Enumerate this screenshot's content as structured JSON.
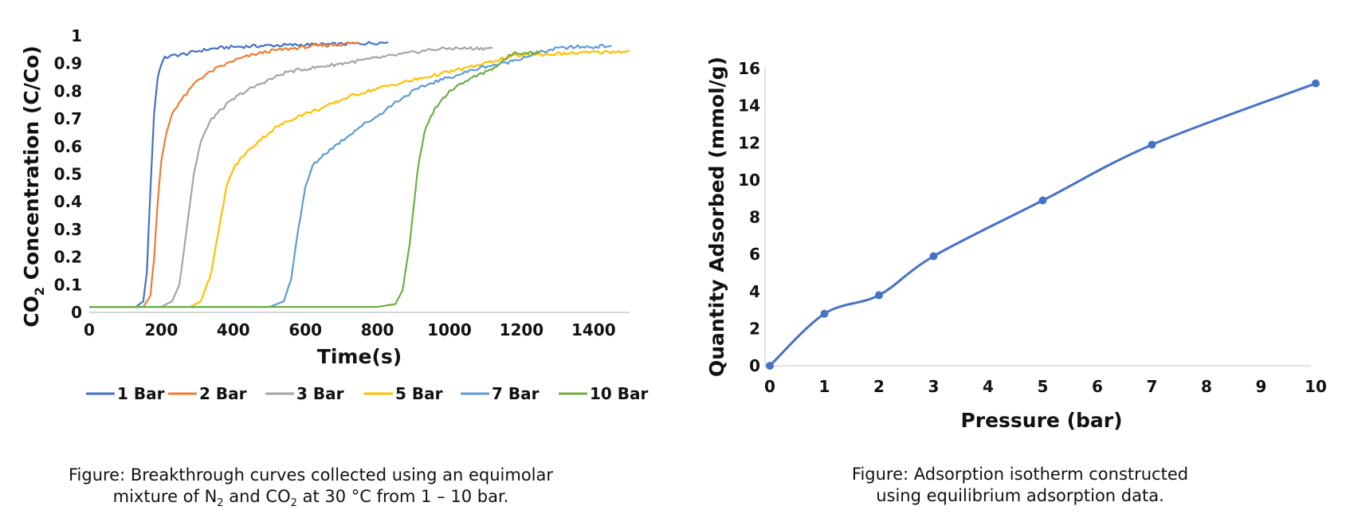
{
  "chart_data": [
    {
      "type": "line",
      "title": "",
      "xlabel": "Time(s)",
      "ylabel_main": "CO",
      "ylabel_sub": "2",
      "ylabel_rest": " Concentration (C/Co)",
      "xlim": [
        0,
        1500
      ],
      "ylim": [
        0,
        1
      ],
      "xticks": [
        0,
        200,
        400,
        600,
        800,
        1000,
        1200,
        1400
      ],
      "yticks": [
        "0",
        "0.1",
        "0.2",
        "0.3",
        "0.4",
        "0.5",
        "0.6",
        "0.7",
        "0.8",
        "0.9",
        "1"
      ],
      "legend_position": "bottom",
      "series": [
        {
          "name": "1 Bar",
          "color": "#4472c4",
          "x": [
            0,
            130,
            150,
            160,
            170,
            180,
            190,
            200,
            210,
            220,
            240,
            270,
            300,
            350,
            400,
            500,
            600,
            700,
            800,
            830
          ],
          "y": [
            0.02,
            0.02,
            0.04,
            0.15,
            0.45,
            0.72,
            0.85,
            0.9,
            0.92,
            0.925,
            0.93,
            0.935,
            0.945,
            0.955,
            0.96,
            0.965,
            0.968,
            0.97,
            0.975,
            0.977
          ]
        },
        {
          "name": "2 Bar",
          "color": "#ed7d31",
          "x": [
            0,
            150,
            170,
            180,
            190,
            200,
            215,
            230,
            250,
            270,
            300,
            350,
            400,
            450,
            500,
            600,
            700,
            750
          ],
          "y": [
            0.02,
            0.02,
            0.06,
            0.2,
            0.4,
            0.55,
            0.65,
            0.72,
            0.76,
            0.79,
            0.84,
            0.88,
            0.91,
            0.93,
            0.945,
            0.96,
            0.97,
            0.975
          ]
        },
        {
          "name": "3 Bar",
          "color": "#a5a5a5",
          "x": [
            0,
            200,
            230,
            250,
            270,
            290,
            310,
            340,
            380,
            420,
            480,
            550,
            650,
            750,
            850,
            950,
            1000,
            1100,
            1120
          ],
          "y": [
            0.02,
            0.02,
            0.04,
            0.1,
            0.3,
            0.5,
            0.62,
            0.7,
            0.75,
            0.79,
            0.83,
            0.87,
            0.89,
            0.91,
            0.93,
            0.95,
            0.955,
            0.955,
            0.955
          ]
        },
        {
          "name": "5 Bar",
          "color": "#ffc000",
          "x": [
            0,
            280,
            310,
            340,
            360,
            380,
            400,
            430,
            470,
            520,
            580,
            650,
            720,
            800,
            900,
            1000,
            1100,
            1150,
            1200,
            1300,
            1400,
            1500
          ],
          "y": [
            0.02,
            0.02,
            0.04,
            0.15,
            0.3,
            0.45,
            0.52,
            0.57,
            0.62,
            0.67,
            0.71,
            0.74,
            0.78,
            0.81,
            0.84,
            0.87,
            0.9,
            0.92,
            0.93,
            0.935,
            0.94,
            0.945
          ]
        },
        {
          "name": "7 Bar",
          "color": "#5b9bd5",
          "x": [
            0,
            500,
            540,
            560,
            580,
            600,
            620,
            650,
            700,
            750,
            800,
            850,
            900,
            950,
            1000,
            1050,
            1100,
            1150,
            1200,
            1250,
            1300,
            1350,
            1400,
            1450
          ],
          "y": [
            0.02,
            0.02,
            0.04,
            0.12,
            0.3,
            0.45,
            0.53,
            0.57,
            0.62,
            0.67,
            0.71,
            0.76,
            0.8,
            0.83,
            0.85,
            0.87,
            0.89,
            0.9,
            0.92,
            0.94,
            0.955,
            0.96,
            0.96,
            0.965
          ]
        },
        {
          "name": "10 Bar",
          "color": "#70ad47",
          "x": [
            0,
            800,
            850,
            870,
            890,
            910,
            930,
            960,
            1000,
            1050,
            1100,
            1130,
            1160,
            1180,
            1200,
            1230,
            1250
          ],
          "y": [
            0.02,
            0.02,
            0.03,
            0.08,
            0.25,
            0.5,
            0.65,
            0.74,
            0.8,
            0.84,
            0.87,
            0.89,
            0.92,
            0.94,
            0.94,
            0.94,
            0.94
          ]
        }
      ]
    },
    {
      "type": "line",
      "title": "",
      "xlabel": "Pressure (bar)",
      "ylabel": "Quantity Adsorbed (mmol/g)",
      "xlim": [
        0,
        10
      ],
      "ylim": [
        0,
        16
      ],
      "xticks": [
        0,
        1,
        2,
        3,
        4,
        5,
        6,
        7,
        8,
        9,
        10
      ],
      "yticks": [
        0,
        2,
        4,
        6,
        8,
        10,
        12,
        14,
        16
      ],
      "series": [
        {
          "name": "Isotherm",
          "color": "#4472c4",
          "x": [
            0,
            1,
            2,
            3,
            5,
            7,
            10
          ],
          "y": [
            0,
            2.8,
            3.8,
            5.9,
            8.9,
            11.9,
            15.2
          ]
        }
      ]
    }
  ],
  "captions": {
    "left_line1": "Figure: Breakthrough curves collected using an equimolar",
    "left_line2_a": "mixture of N",
    "left_sub_1": "2",
    "left_line2_b": " and CO",
    "left_sub_2": "2",
    "left_line2_c": " at 30 °C from 1 – 10 bar.",
    "right_line1": "Figure: Adsorption isotherm constructed",
    "right_line2": "using equilibrium adsorption data."
  }
}
